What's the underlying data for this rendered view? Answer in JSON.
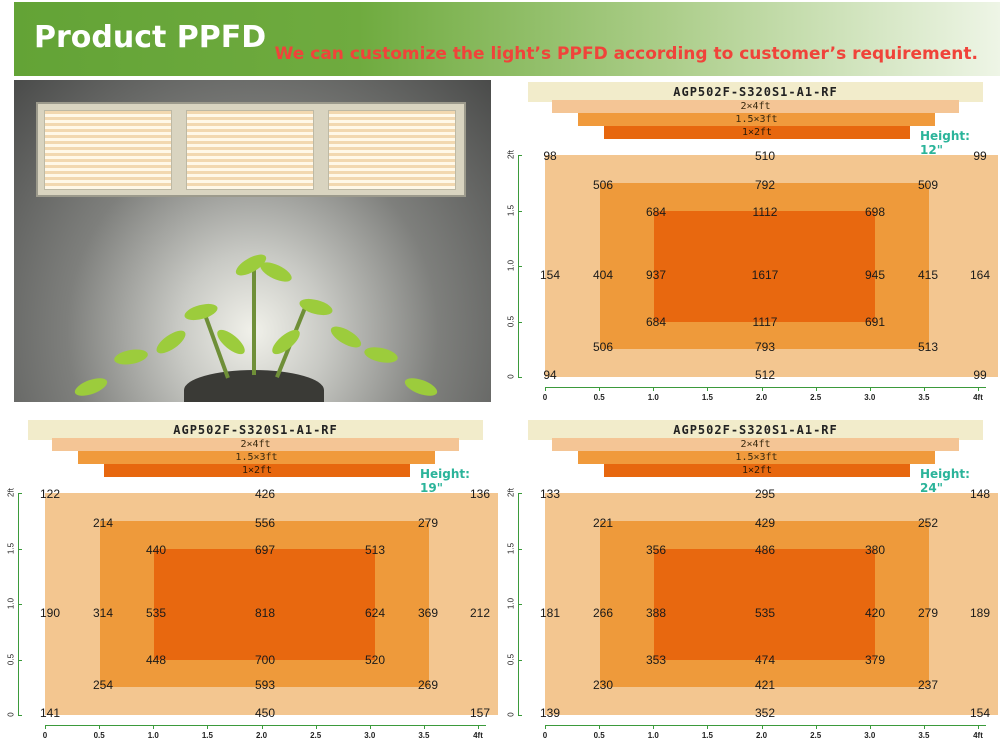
{
  "header": {
    "title": "Product PPFD",
    "slogan": "We can customize the light’s PPFD according to customer’s requirement."
  },
  "colors": {
    "header_green": "#63a336",
    "slogan_red": "#f0433a",
    "zone_outer": "#f3c690",
    "zone_mid": "#ee9a3b",
    "zone_inner": "#e8680f",
    "height_teal": "#2bb49a"
  },
  "photo": {
    "icon": "grow-light-photo"
  },
  "legend_bars": [
    "2×4ft",
    "1.5×3ft",
    "1×2ft"
  ],
  "x_ticks": [
    "0",
    "0.5",
    "1.0",
    "1.5",
    "2.0",
    "2.5",
    "3.0",
    "3.5",
    "4ft"
  ],
  "y_ticks": [
    "0",
    "0.5",
    "1.0",
    "1.5",
    "2ft"
  ],
  "chart_data": [
    {
      "type": "heatmap",
      "model": "AGP502F-S320S1-A1-RF",
      "height_label": "Height: 12\"",
      "rows": [
        [
          "98",
          "510",
          "99"
        ],
        [
          "506",
          "792",
          "509"
        ],
        [
          "684",
          "1112",
          "698"
        ],
        [
          "154",
          "404",
          "937",
          "1617",
          "945",
          "415",
          "164"
        ],
        [
          "684",
          "1117",
          "691"
        ],
        [
          "506",
          "793",
          "513"
        ],
        [
          "94",
          "512",
          "99"
        ]
      ]
    },
    {
      "type": "heatmap",
      "model": "AGP502F-S320S1-A1-RF",
      "height_label": "Height: 19\"",
      "rows": [
        [
          "122",
          "426",
          "136"
        ],
        [
          "214",
          "556",
          "279"
        ],
        [
          "440",
          "697",
          "513"
        ],
        [
          "190",
          "314",
          "535",
          "818",
          "624",
          "369",
          "212"
        ],
        [
          "448",
          "700",
          "520"
        ],
        [
          "254",
          "593",
          "269"
        ],
        [
          "141",
          "450",
          "157"
        ]
      ]
    },
    {
      "type": "heatmap",
      "model": "AGP502F-S320S1-A1-RF",
      "height_label": "Height: 24\"",
      "rows": [
        [
          "133",
          "295",
          "148"
        ],
        [
          "221",
          "429",
          "252"
        ],
        [
          "356",
          "486",
          "380"
        ],
        [
          "181",
          "266",
          "388",
          "535",
          "420",
          "279",
          "189"
        ],
        [
          "353",
          "474",
          "379"
        ],
        [
          "230",
          "421",
          "237"
        ],
        [
          "139",
          "352",
          "154"
        ]
      ]
    }
  ]
}
